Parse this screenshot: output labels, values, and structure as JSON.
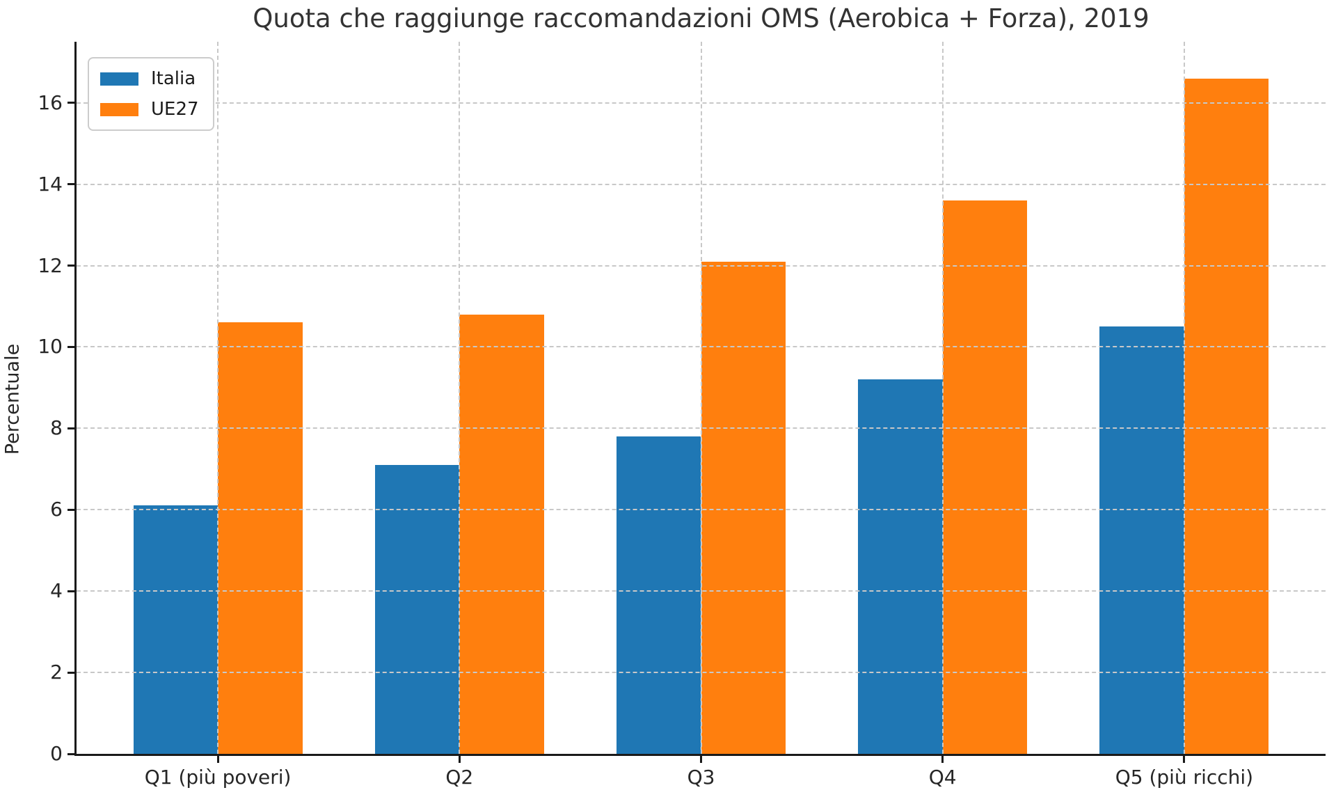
{
  "chart_data": {
    "type": "bar",
    "title": "Quota che raggiunge raccomandazioni OMS (Aerobica + Forza), 2019",
    "xlabel": "",
    "ylabel": "Percentuale",
    "categories": [
      "Q1 (più poveri)",
      "Q2",
      "Q3",
      "Q4",
      "Q5 (più ricchi)"
    ],
    "series": [
      {
        "name": "Italia",
        "color": "#1f77b4",
        "values": [
          6.1,
          7.1,
          7.8,
          9.2,
          10.5
        ]
      },
      {
        "name": "UE27",
        "color": "#ff7f0e",
        "values": [
          10.6,
          10.8,
          12.1,
          13.6,
          16.6
        ]
      }
    ],
    "ylim": [
      0,
      17.5
    ],
    "yticks": [
      0,
      2,
      4,
      6,
      8,
      10,
      12,
      14,
      16
    ],
    "grid": true,
    "grid_above_bars": true,
    "legend_position": "upper left",
    "bar_width_fraction": 0.35,
    "colors": {
      "grid": "#c8c8c8",
      "spine": "#1a1a1a",
      "tick_text": "#262626",
      "title_text": "#333333",
      "background": "#ffffff"
    }
  }
}
